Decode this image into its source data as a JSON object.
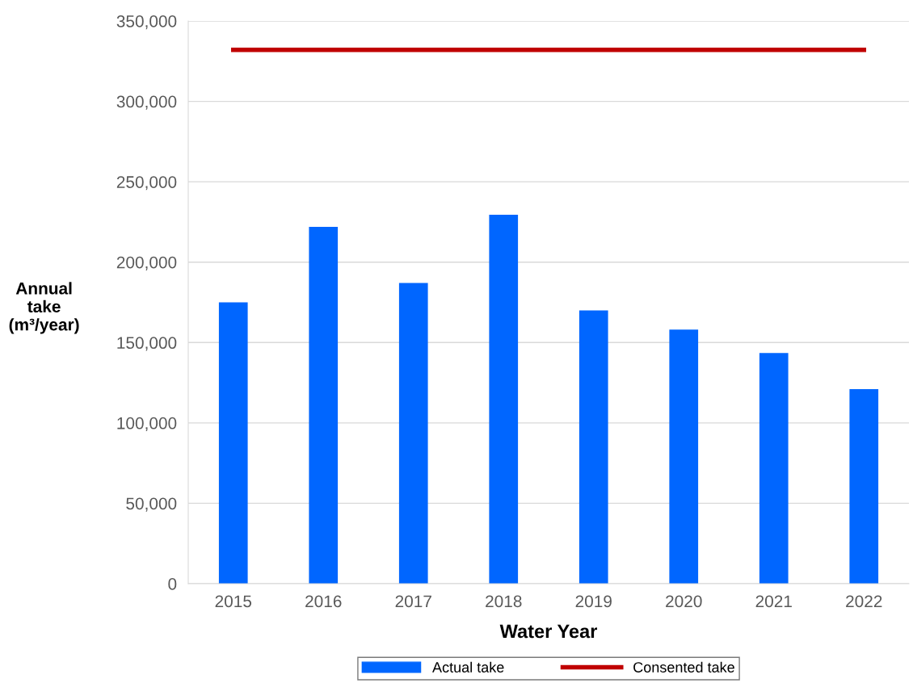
{
  "chart_data": {
    "type": "bar",
    "xlabel": "Water Year",
    "ylabel": "Annual\ntake\n(m³/year)",
    "categories": [
      "2015",
      "2016",
      "2017",
      "2018",
      "2019",
      "2020",
      "2021",
      "2022"
    ],
    "series": [
      {
        "name": "Actual take",
        "color": "#0066ff",
        "values": [
          175000,
          222000,
          187000,
          229500,
          170000,
          158000,
          143500,
          121000
        ]
      },
      {
        "name": "Consented take",
        "type": "line",
        "color": "#c00000",
        "values": [
          332000,
          332000,
          332000,
          332000,
          332000,
          332000,
          332000,
          332000
        ]
      }
    ],
    "ylim": [
      0,
      350000
    ],
    "yticks": [
      {
        "value": 0,
        "label": "0"
      },
      {
        "value": 50000,
        "label": "50,000"
      },
      {
        "value": 100000,
        "label": "100,000"
      },
      {
        "value": 150000,
        "label": "150,000"
      },
      {
        "value": 200000,
        "label": "200,000"
      },
      {
        "value": 250000,
        "label": "250,000"
      },
      {
        "value": 300000,
        "label": "300,000"
      },
      {
        "value": 350000,
        "label": "350,000"
      }
    ],
    "grid": "y",
    "legend": "bottom",
    "marker": "none",
    "line_style": "solid"
  }
}
